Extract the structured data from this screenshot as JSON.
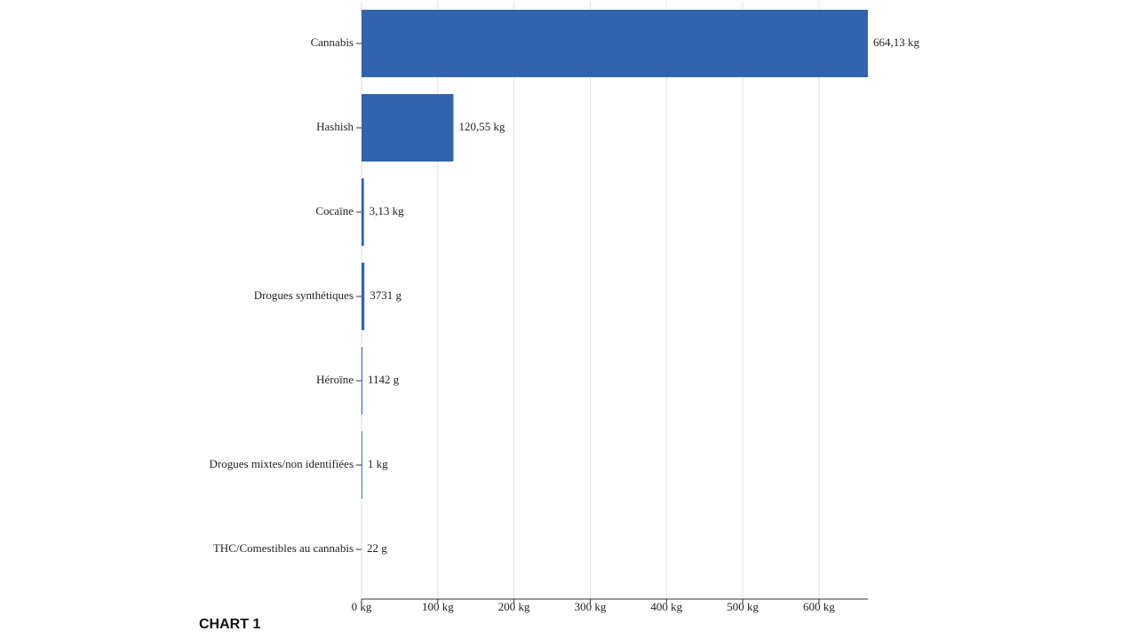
{
  "chart_data": {
    "type": "hbar",
    "title": "CHART 1",
    "categories": [
      "Cannabis",
      "Hashish",
      "Cocaïne",
      "Drogues synthétiques",
      "Héroïne",
      "Drogues mixtes/non identifiées",
      "THC/Comestibles au cannabis"
    ],
    "values": [
      664.13,
      120.55,
      3.13,
      3.731,
      1.142,
      1,
      0.022
    ],
    "value_labels": [
      "664,13 kg",
      "120,55 kg",
      "3,13 kg",
      "3731 g",
      "1142 g",
      "1 kg",
      "22 g"
    ],
    "color": "#3264ae",
    "xlim": [
      0,
      664.13
    ],
    "xticks": [
      {
        "value": 0,
        "label": "0 kg"
      },
      {
        "value": 100,
        "label": "100 kg"
      },
      {
        "value": 200,
        "label": "200 kg"
      },
      {
        "value": 300,
        "label": "300 kg"
      },
      {
        "value": 400,
        "label": "400 kg"
      },
      {
        "value": 500,
        "label": "500 kg"
      },
      {
        "value": 600,
        "label": "600 kg"
      }
    ],
    "grid": true
  }
}
